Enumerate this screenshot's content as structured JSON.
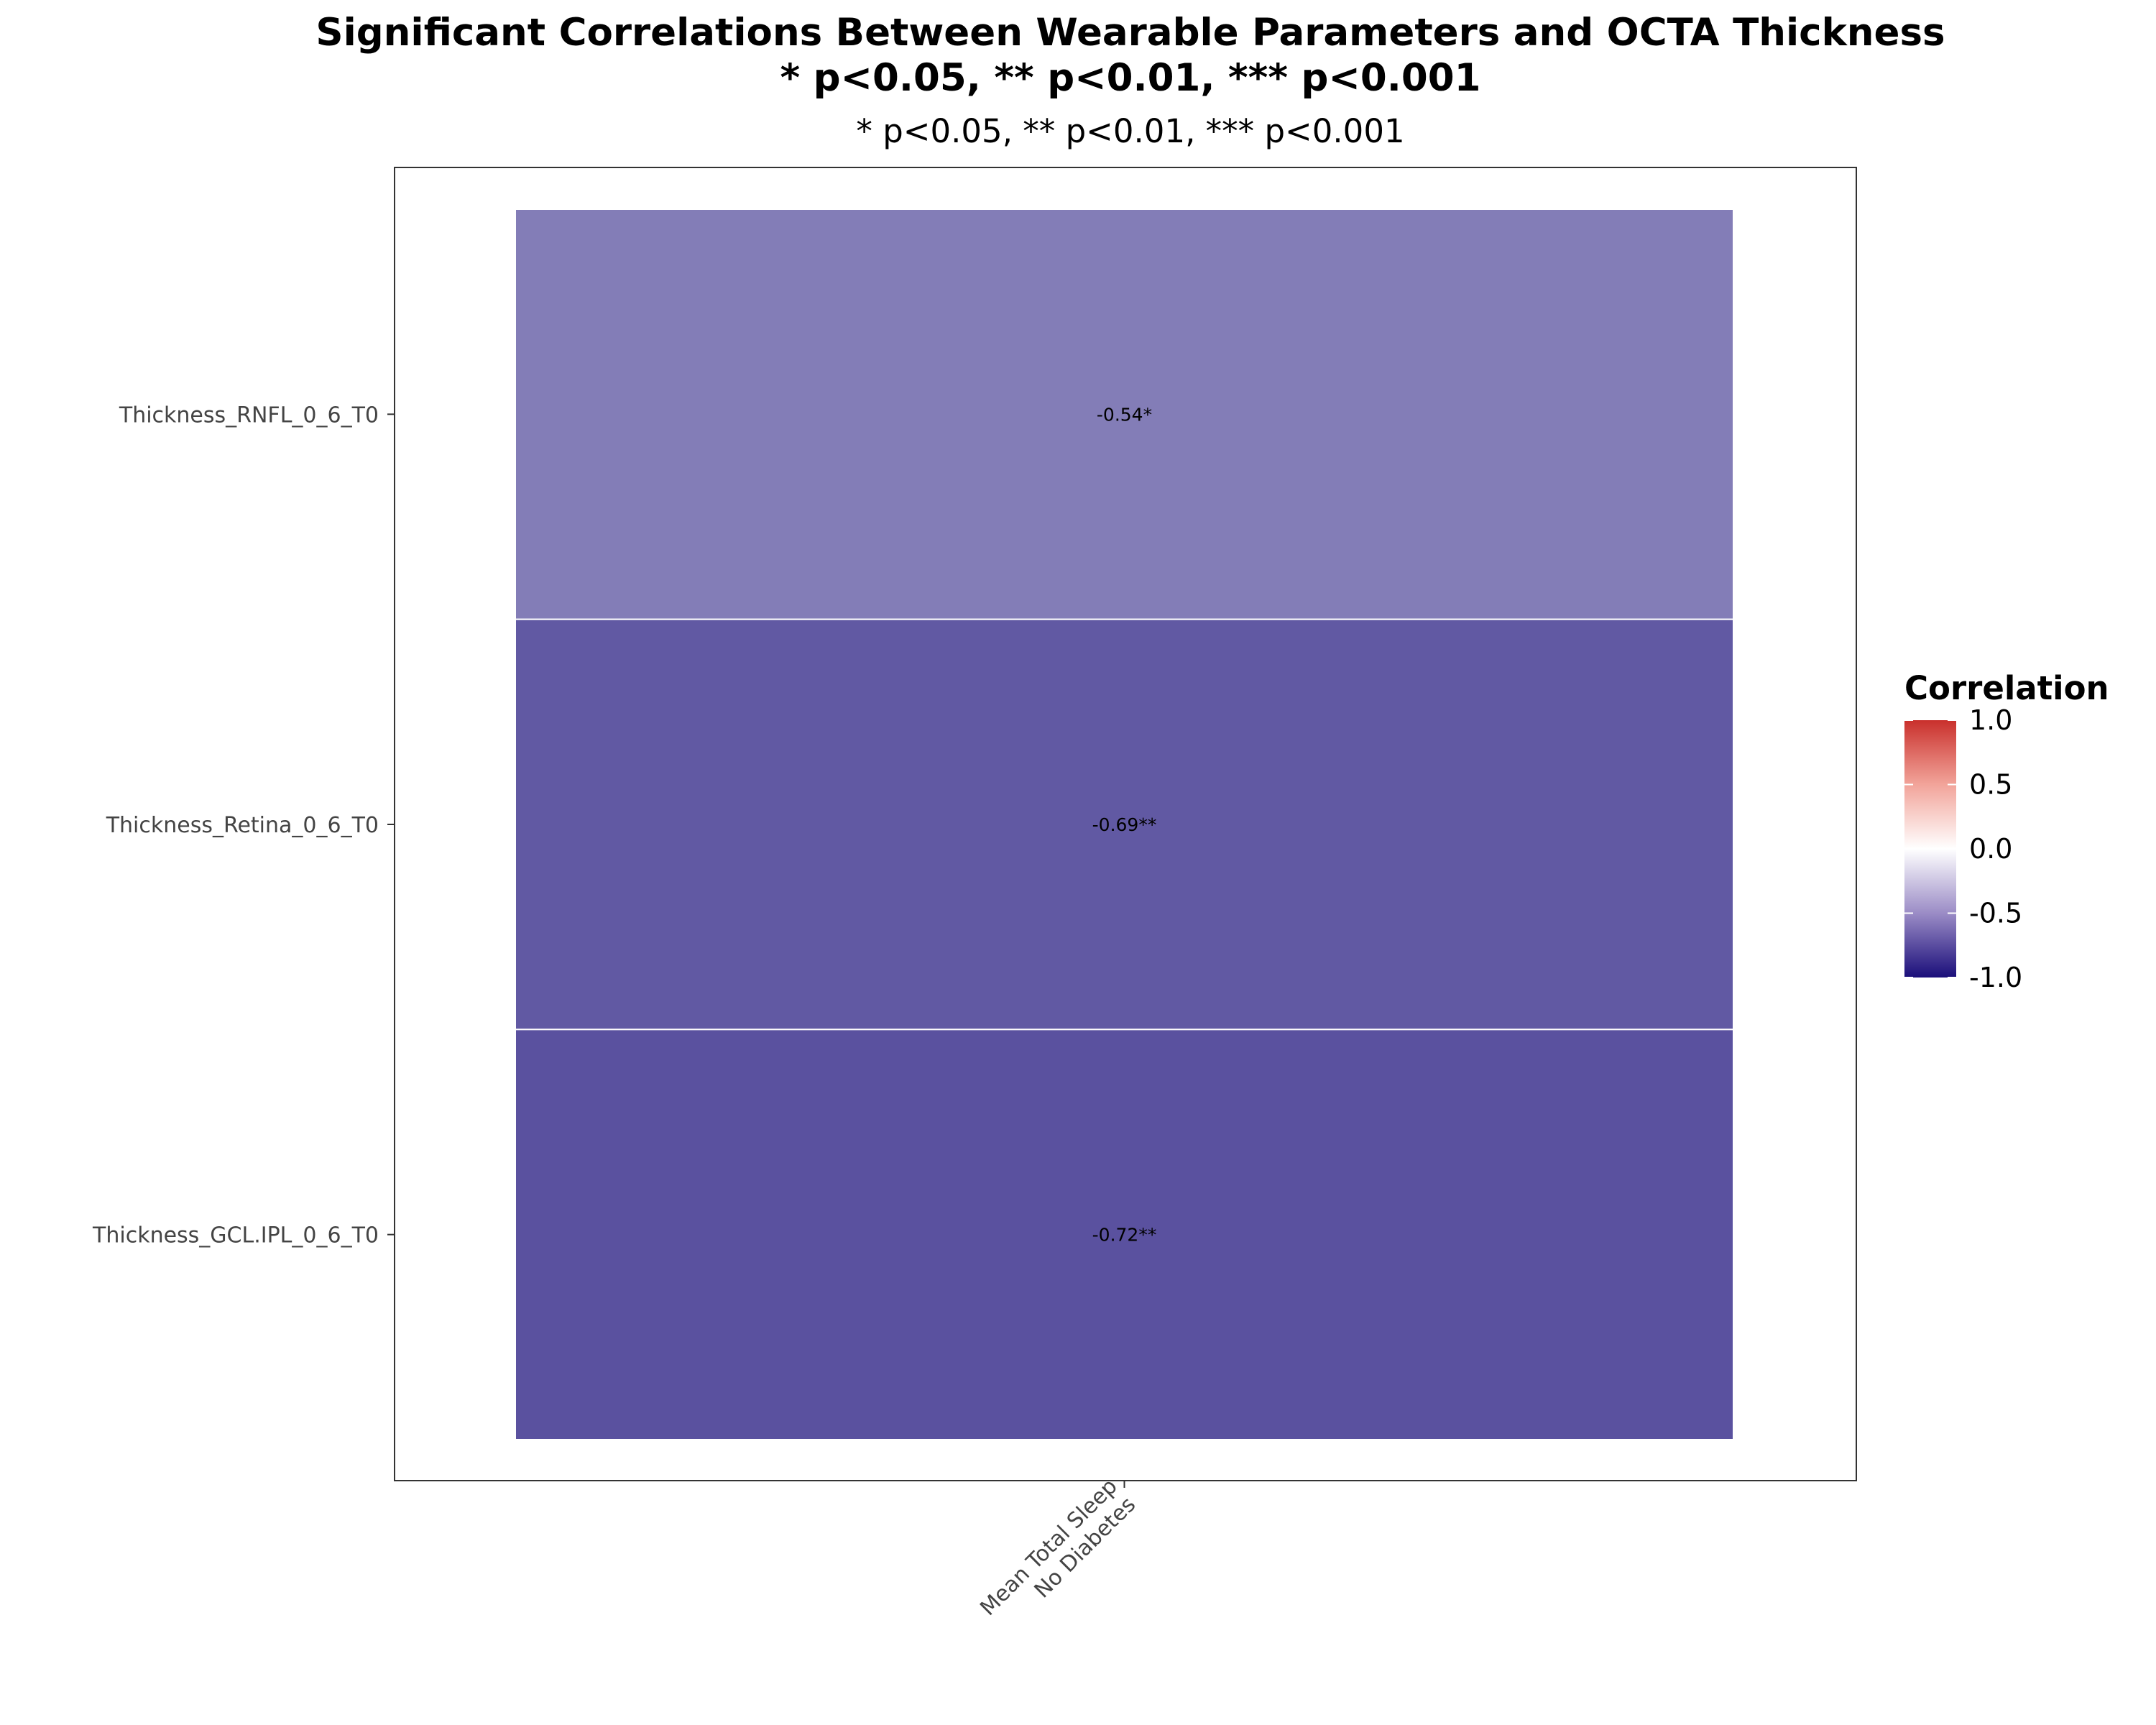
{
  "chart_data": {
    "type": "heatmap",
    "title_line1": "Significant Correlations Between Wearable Parameters and OCTA Thickness",
    "title_line2": "* p<0.05, ** p<0.01, *** p<0.001",
    "subtitle": "* p<0.05, ** p<0.01, *** p<0.001",
    "x_categories": [
      {
        "lines": [
          "Mean Total Sleep",
          "No Diabetes"
        ]
      }
    ],
    "y_categories": [
      "Thickness_RNFL_0_6_T0",
      "Thickness_Retina_0_6_T0",
      "Thickness_GCL.IPL_0_6_T0"
    ],
    "cells": [
      {
        "x": 0,
        "y": 0,
        "value": -0.54,
        "label": "-0.54*"
      },
      {
        "x": 0,
        "y": 1,
        "value": -0.69,
        "label": "-0.69**"
      },
      {
        "x": 0,
        "y": 2,
        "value": -0.72,
        "label": "-0.72**"
      }
    ],
    "legend": {
      "title": "Correlation",
      "placement": "right",
      "range": [
        -1.0,
        1.0
      ],
      "ticks": [
        "1.0",
        "0.5",
        "0.0",
        "-0.5",
        "-1.0"
      ],
      "colors": {
        "low": "#1a0e7a",
        "mid": "#ffffff",
        "high": "#c9302c"
      }
    },
    "grid": false
  }
}
